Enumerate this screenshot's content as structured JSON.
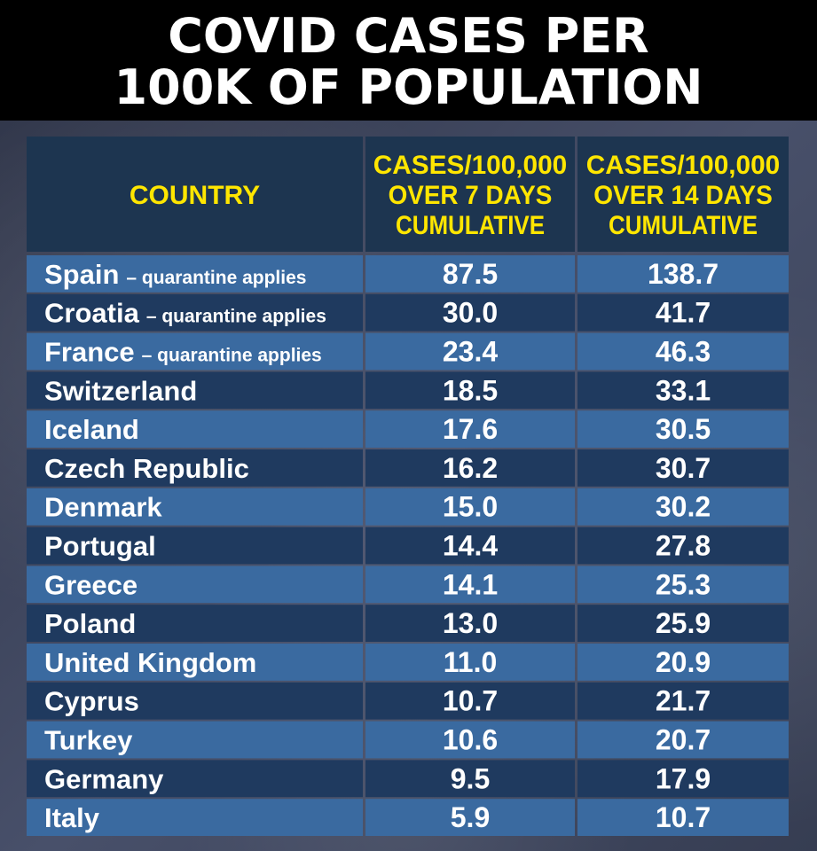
{
  "title": {
    "line1": "COVID CASES PER",
    "line2": "100K OF POPULATION"
  },
  "colors": {
    "header_bg": "#1d3550",
    "header_text": "#ffe600",
    "row_light": "#3a6aa0",
    "row_dark": "#1f3a5f",
    "text": "#ffffff",
    "title_bg": "#000000"
  },
  "chart_data": {
    "type": "table",
    "title": "COVID CASES PER 100K OF POPULATION",
    "columns": [
      "COUNTRY",
      "CASES/100,000 OVER 7 DAYS CUMULATIVE",
      "CASES/100,000 OVER 14 DAYS CUMULATIVE"
    ],
    "header_lines": [
      [
        "COUNTRY"
      ],
      [
        "CASES/100,000",
        "OVER 7 DAYS",
        "CUMULATIVE"
      ],
      [
        "CASES/100,000",
        "OVER 14 DAYS",
        "CUMULATIVE"
      ]
    ],
    "rows": [
      {
        "country": "Spain",
        "note": "– quarantine applies",
        "days7": "87.5",
        "days14": "138.7"
      },
      {
        "country": "Croatia",
        "note": "– quarantine applies",
        "days7": "30.0",
        "days14": "41.7"
      },
      {
        "country": "France",
        "note": "– quarantine applies",
        "days7": "23.4",
        "days14": "46.3"
      },
      {
        "country": "Switzerland",
        "note": "",
        "days7": "18.5",
        "days14": "33.1"
      },
      {
        "country": "Iceland",
        "note": "",
        "days7": "17.6",
        "days14": "30.5"
      },
      {
        "country": "Czech Republic",
        "note": "",
        "days7": "16.2",
        "days14": "30.7"
      },
      {
        "country": "Denmark",
        "note": "",
        "days7": "15.0",
        "days14": "30.2"
      },
      {
        "country": "Portugal",
        "note": "",
        "days7": "14.4",
        "days14": "27.8"
      },
      {
        "country": "Greece",
        "note": "",
        "days7": "14.1",
        "days14": "25.3"
      },
      {
        "country": "Poland",
        "note": "",
        "days7": "13.0",
        "days14": "25.9"
      },
      {
        "country": "United Kingdom",
        "note": "",
        "days7": "11.0",
        "days14": "20.9"
      },
      {
        "country": "Cyprus",
        "note": "",
        "days7": "10.7",
        "days14": "21.7"
      },
      {
        "country": "Turkey",
        "note": "",
        "days7": "10.6",
        "days14": "20.7"
      },
      {
        "country": "Germany",
        "note": "",
        "days7": "9.5",
        "days14": "17.9"
      },
      {
        "country": "Italy",
        "note": "",
        "days7": "5.9",
        "days14": "10.7"
      }
    ]
  }
}
